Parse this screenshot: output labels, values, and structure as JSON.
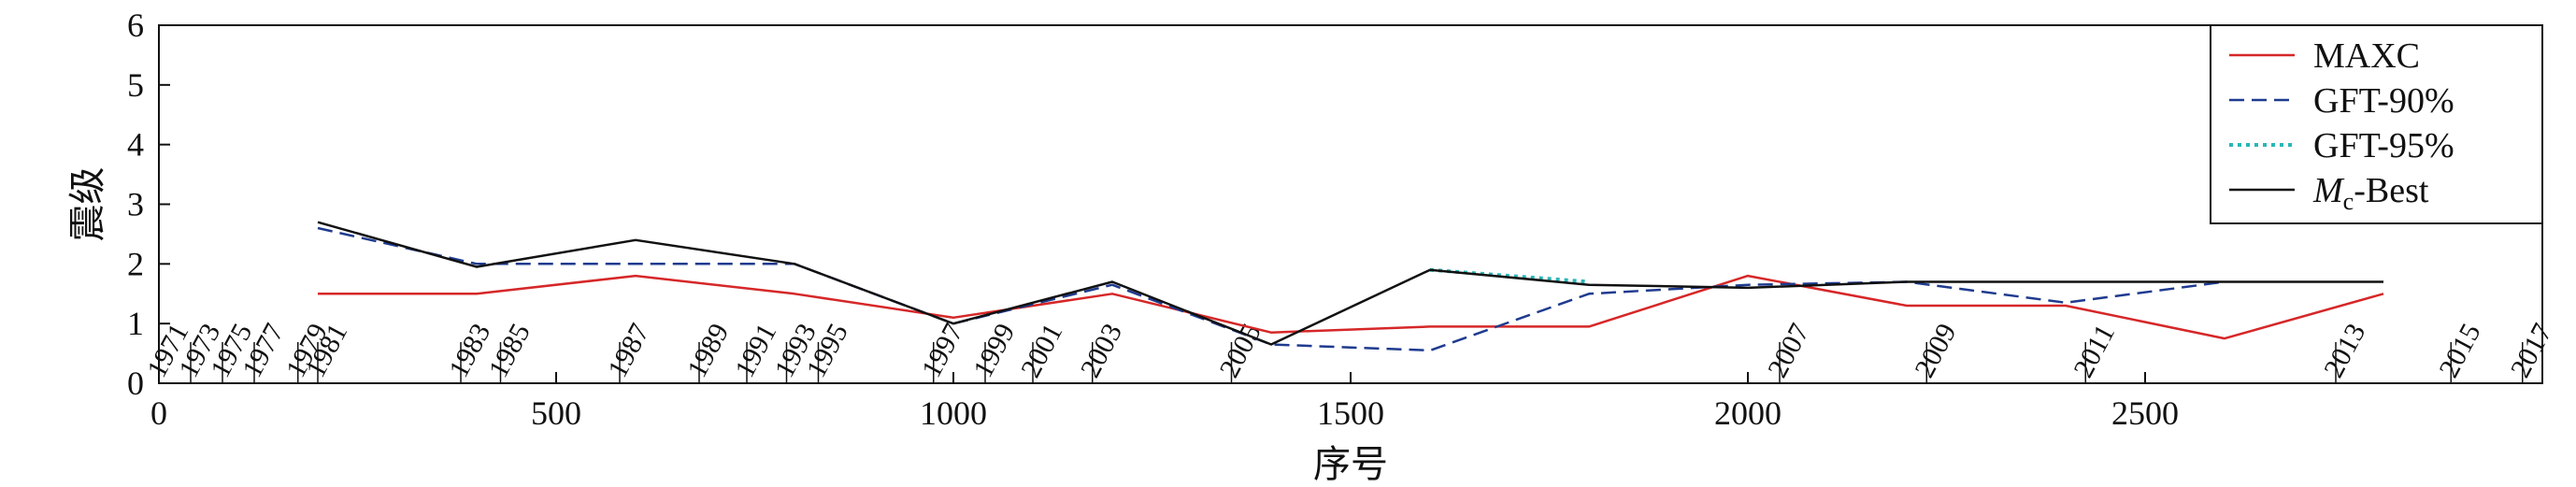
{
  "chart_data": {
    "type": "line",
    "xlabel": "序号",
    "ylabel": "震级",
    "xlim": [
      0,
      3000
    ],
    "ylim": [
      0,
      6
    ],
    "xticks": [
      0,
      500,
      1000,
      1500,
      2000,
      2500
    ],
    "yticks": [
      0,
      1,
      2,
      3,
      4,
      5,
      6
    ],
    "grid": false,
    "legend_position": "top-right",
    "series": [
      {
        "name": "MAXC",
        "color": "#d62728",
        "dash": "solid",
        "points": [
          [
            200,
            1.5
          ],
          [
            400,
            1.5
          ],
          [
            600,
            1.8
          ],
          [
            800,
            1.5
          ],
          [
            1000,
            1.1
          ],
          [
            1200,
            1.5
          ],
          [
            1400,
            0.85
          ],
          [
            1600,
            0.95
          ],
          [
            1800,
            0.95
          ],
          [
            2000,
            1.8
          ],
          [
            2200,
            1.3
          ],
          [
            2400,
            1.3
          ],
          [
            2600,
            0.75
          ],
          [
            2800,
            1.5
          ]
        ]
      },
      {
        "name": "GFT-90%",
        "color": "#1f3b8f",
        "dash": "dashed",
        "points": [
          [
            200,
            2.6
          ],
          [
            400,
            2.0
          ],
          [
            600,
            2.0
          ],
          [
            800,
            2.0
          ],
          [
            1000,
            1.0
          ],
          [
            1200,
            1.65
          ],
          [
            1400,
            0.65
          ],
          [
            1600,
            0.55
          ],
          [
            1800,
            1.5
          ],
          [
            2000,
            1.65
          ],
          [
            2200,
            1.7
          ],
          [
            2400,
            1.35
          ],
          [
            2600,
            1.7
          ]
        ]
      },
      {
        "name": "GFT-95%",
        "color": "#2ab7b7",
        "dash": "dotted",
        "points": [
          [
            1600,
            1.9
          ],
          [
            1800,
            1.7
          ]
        ]
      },
      {
        "name_main": "M",
        "name_sub": "c",
        "name_suffix": "-Best",
        "color": "#111111",
        "dash": "solid",
        "points": [
          [
            200,
            2.7
          ],
          [
            400,
            1.95
          ],
          [
            600,
            2.4
          ],
          [
            800,
            2.0
          ],
          [
            1000,
            1.0
          ],
          [
            1200,
            1.7
          ],
          [
            1400,
            0.65
          ],
          [
            1600,
            1.9
          ],
          [
            1800,
            1.65
          ],
          [
            2000,
            1.6
          ],
          [
            2200,
            1.7
          ],
          [
            2400,
            1.7
          ],
          [
            2600,
            1.7
          ],
          [
            2800,
            1.7
          ]
        ]
      }
    ],
    "year_markers": [
      {
        "x": 0,
        "label": "1971"
      },
      {
        "x": 40,
        "label": "1973"
      },
      {
        "x": 80,
        "label": "1975"
      },
      {
        "x": 120,
        "label": "1977"
      },
      {
        "x": 175,
        "label": "1979"
      },
      {
        "x": 200,
        "label": "1981"
      },
      {
        "x": 380,
        "label": "1983"
      },
      {
        "x": 430,
        "label": "1985"
      },
      {
        "x": 580,
        "label": "1987"
      },
      {
        "x": 680,
        "label": "1989"
      },
      {
        "x": 740,
        "label": "1991"
      },
      {
        "x": 790,
        "label": "1993"
      },
      {
        "x": 830,
        "label": "1995"
      },
      {
        "x": 975,
        "label": "1997"
      },
      {
        "x": 1040,
        "label": "1999"
      },
      {
        "x": 1100,
        "label": "2001"
      },
      {
        "x": 1175,
        "label": "2003"
      },
      {
        "x": 1350,
        "label": "2005"
      },
      {
        "x": 2040,
        "label": "2007"
      },
      {
        "x": 2225,
        "label": "2009"
      },
      {
        "x": 2425,
        "label": "2011"
      },
      {
        "x": 2740,
        "label": "2013"
      },
      {
        "x": 2885,
        "label": "2015"
      },
      {
        "x": 2975,
        "label": "2017"
      }
    ]
  }
}
